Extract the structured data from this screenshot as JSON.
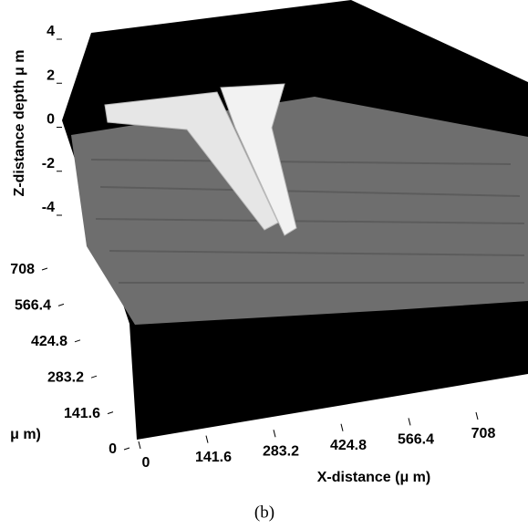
{
  "chart_data": {
    "type": "surface",
    "caption": "(b)",
    "zlabel": "Z-distance depth μ m",
    "xlabel": "X-distance (μ m)",
    "ylabel": "μ m)",
    "zlim": [
      -4,
      4
    ],
    "zticks": [
      4,
      2,
      0,
      -2,
      -4
    ],
    "xlim": [
      0,
      708
    ],
    "xticks": [
      0,
      141.6,
      283.2,
      424.8,
      566.4,
      708
    ],
    "ylim": [
      0,
      708
    ],
    "yticks": [
      0,
      141.6,
      283.2,
      424.8,
      566.4,
      708
    ]
  }
}
